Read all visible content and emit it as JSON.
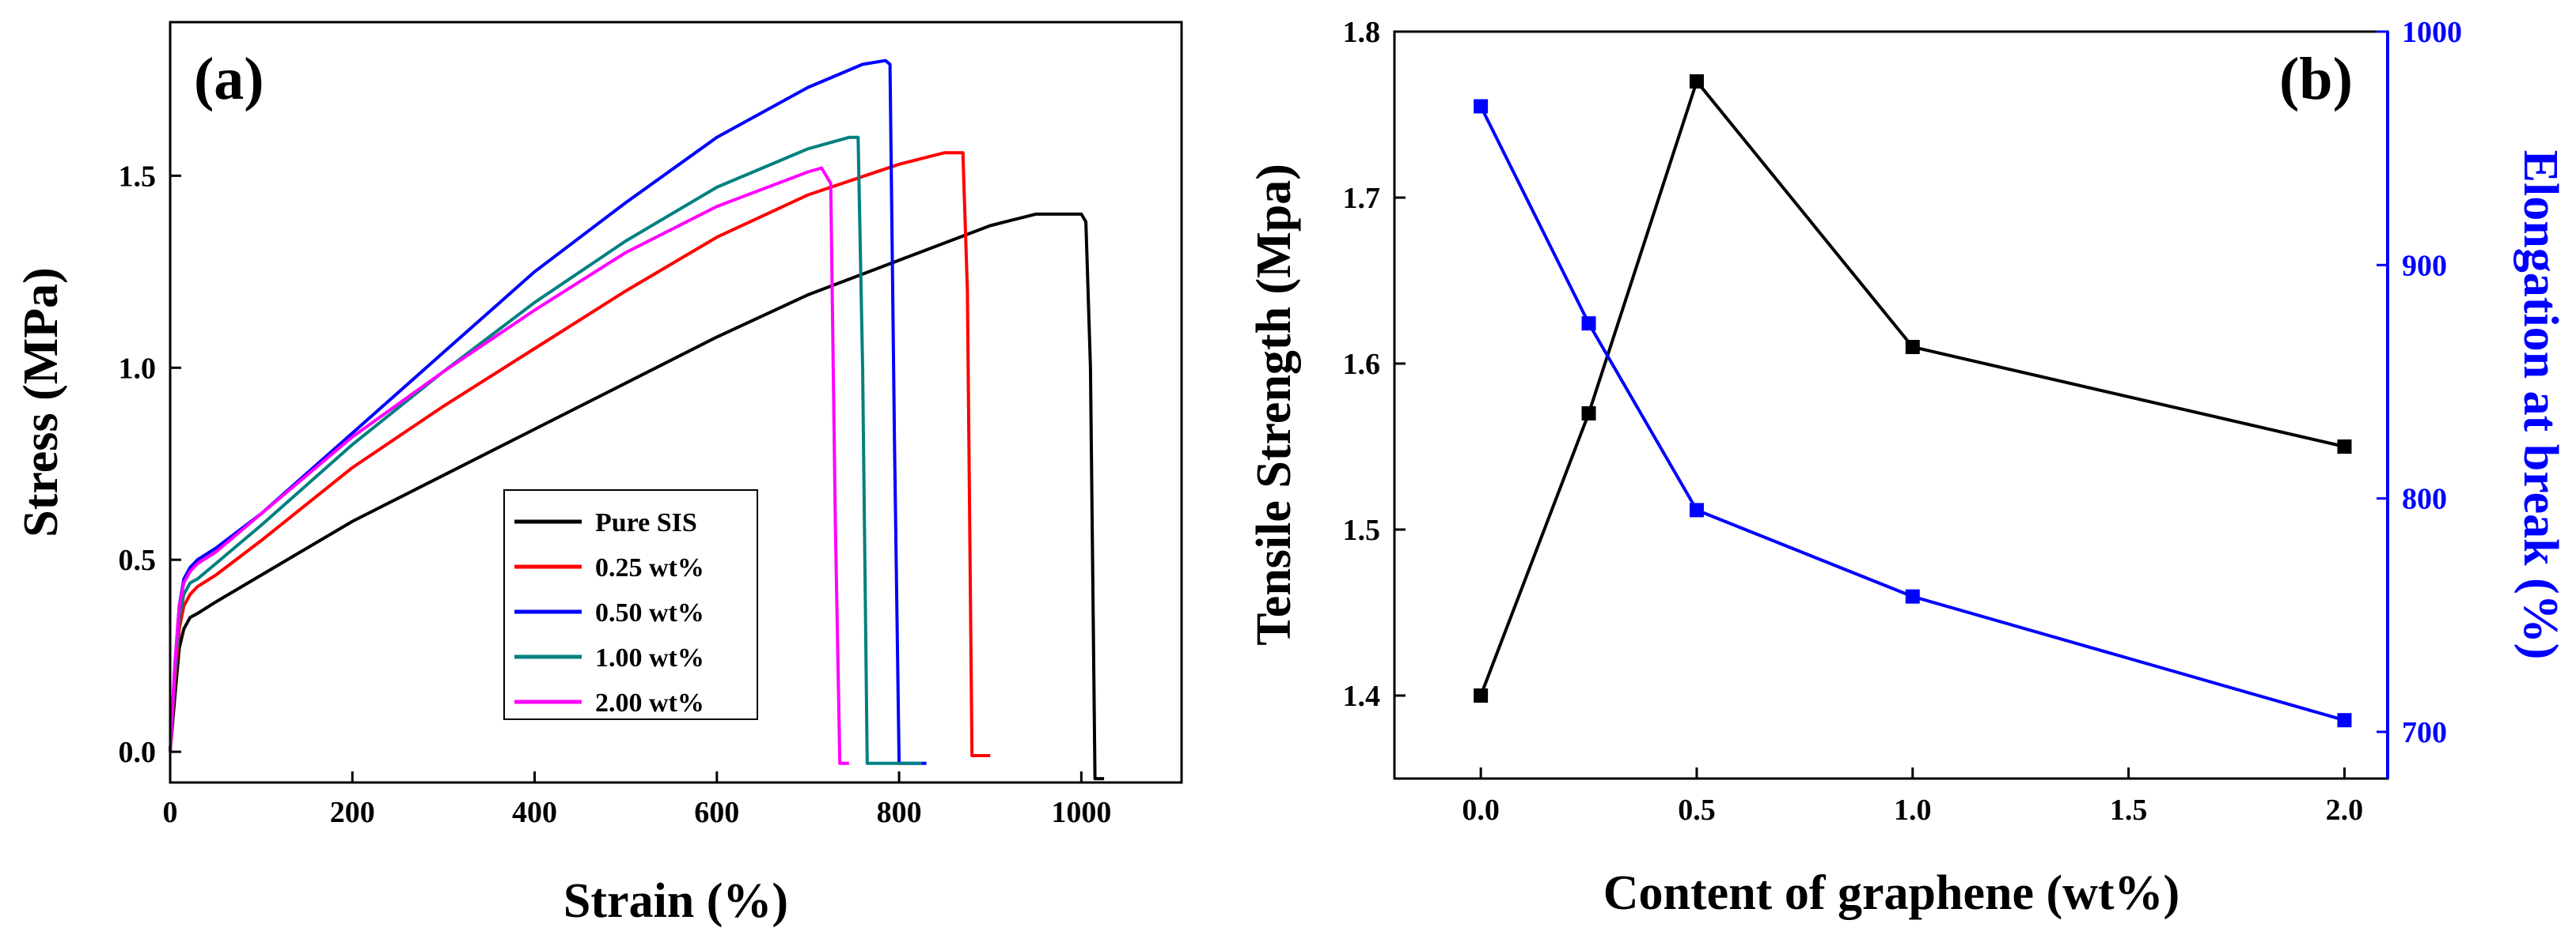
{
  "chart_data": [
    {
      "type": "line",
      "panel_label": "(a)",
      "title": "",
      "xlabel": "Strain (%)",
      "ylabel": "Stress (MPa)",
      "xlim": [
        0,
        1110
      ],
      "ylim": [
        -0.08,
        1.9
      ],
      "xticks": [
        0,
        200,
        400,
        600,
        800,
        1000
      ],
      "xtick_labels": [
        "0",
        "200",
        "400",
        "600",
        "800",
        "1000"
      ],
      "yticks": [
        0.0,
        0.5,
        1.0,
        1.5
      ],
      "ytick_labels": [
        "0.0",
        "0.5",
        "1.0",
        "1.5"
      ],
      "legend_position": "center-right",
      "series": [
        {
          "name": "Pure SIS",
          "color": "#000000",
          "x": [
            0,
            5,
            10,
            15,
            22,
            30,
            50,
            100,
            200,
            300,
            400,
            500,
            600,
            700,
            800,
            900,
            950,
            1000,
            1005,
            1010,
            1015,
            1025
          ],
          "y": [
            0.0,
            0.14,
            0.27,
            0.32,
            0.35,
            0.36,
            0.39,
            0.46,
            0.6,
            0.72,
            0.84,
            0.96,
            1.08,
            1.19,
            1.28,
            1.37,
            1.4,
            1.4,
            1.38,
            1.0,
            -0.07,
            -0.07
          ]
        },
        {
          "name": "0.25 wt%",
          "color": "#ff0000",
          "x": [
            0,
            5,
            10,
            15,
            22,
            30,
            50,
            100,
            200,
            300,
            400,
            500,
            600,
            700,
            800,
            850,
            870,
            875,
            880,
            900
          ],
          "y": [
            0.0,
            0.18,
            0.32,
            0.38,
            0.41,
            0.43,
            0.46,
            0.55,
            0.74,
            0.9,
            1.05,
            1.2,
            1.34,
            1.45,
            1.53,
            1.56,
            1.56,
            1.2,
            -0.01,
            -0.01
          ]
        },
        {
          "name": "0.50 wt%",
          "color": "#0000ff",
          "x": [
            0,
            5,
            10,
            15,
            22,
            30,
            50,
            100,
            200,
            300,
            400,
            500,
            600,
            700,
            760,
            785,
            790,
            795,
            800,
            830
          ],
          "y": [
            0.0,
            0.22,
            0.38,
            0.45,
            0.48,
            0.5,
            0.53,
            0.62,
            0.83,
            1.04,
            1.25,
            1.43,
            1.6,
            1.73,
            1.79,
            1.8,
            1.79,
            0.8,
            -0.03,
            -0.03
          ]
        },
        {
          "name": "1.00 wt%",
          "color": "#008080",
          "x": [
            0,
            5,
            10,
            15,
            22,
            30,
            50,
            100,
            200,
            300,
            400,
            500,
            600,
            700,
            745,
            755,
            760,
            765,
            800,
            825
          ],
          "y": [
            0.0,
            0.2,
            0.35,
            0.41,
            0.44,
            0.45,
            0.49,
            0.59,
            0.8,
            0.99,
            1.17,
            1.33,
            1.47,
            1.57,
            1.6,
            1.6,
            1.0,
            -0.03,
            -0.03,
            -0.03
          ]
        },
        {
          "name": "2.00 wt%",
          "color": "#ff00ff",
          "x": [
            0,
            5,
            10,
            15,
            22,
            30,
            50,
            100,
            200,
            300,
            400,
            500,
            600,
            700,
            715,
            725,
            730,
            735,
            745
          ],
          "y": [
            0.0,
            0.22,
            0.38,
            0.44,
            0.47,
            0.49,
            0.52,
            0.62,
            0.82,
            0.99,
            1.15,
            1.3,
            1.42,
            1.51,
            1.52,
            1.48,
            0.6,
            -0.03,
            -0.03
          ]
        }
      ]
    },
    {
      "type": "line",
      "panel_label": "(b)",
      "title": "",
      "xlabel": "Content of graphene (wt%)",
      "ylabel": "Tensile Strength (Mpa)",
      "ylabel_right": "Elongation at break (%)",
      "xlim": [
        -0.2,
        2.1
      ],
      "ylim": [
        1.35,
        1.8
      ],
      "ylim_right": [
        680,
        1000
      ],
      "xticks": [
        0.0,
        0.5,
        1.0,
        1.5,
        2.0
      ],
      "xtick_labels": [
        "0.0",
        "0.5",
        "1.0",
        "1.5",
        "2.0"
      ],
      "yticks": [
        1.4,
        1.5,
        1.6,
        1.7,
        1.8
      ],
      "ytick_labels": [
        "1.4",
        "1.5",
        "1.6",
        "1.7",
        "1.8"
      ],
      "yticks_right": [
        700,
        800,
        900,
        1000
      ],
      "ytick_labels_right": [
        "700",
        "800",
        "900",
        "1000"
      ],
      "series": [
        {
          "name": "Tensile Strength",
          "axis": "left",
          "color": "#000000",
          "marker": "square",
          "x": [
            0.0,
            0.25,
            0.5,
            1.0,
            2.0
          ],
          "y": [
            1.4,
            1.57,
            1.77,
            1.61,
            1.55
          ]
        },
        {
          "name": "Elongation at break",
          "axis": "right",
          "color": "#0000ff",
          "marker": "square",
          "x": [
            0.0,
            0.25,
            0.5,
            1.0,
            2.0
          ],
          "y": [
            968,
            875,
            795,
            758,
            705
          ]
        }
      ]
    }
  ]
}
